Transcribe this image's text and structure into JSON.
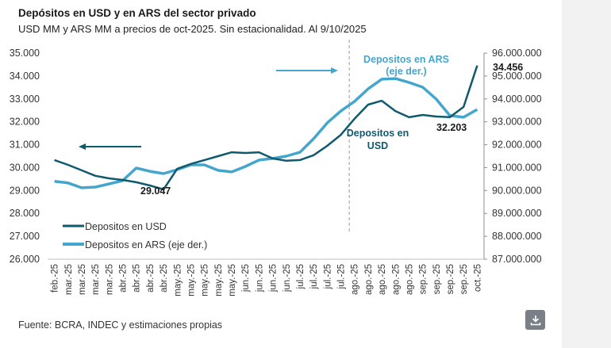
{
  "header": {
    "title": "Depósitos en USD y en ARS del sector privado",
    "subtitle": "USD MM y ARS MM a precios de oct-2025. Sin estacionalidad. Al 9/10/2025"
  },
  "footer": {
    "source": "Fuente: BCRA, INDEC y estimaciones propias",
    "download_icon": "download-icon"
  },
  "colors": {
    "usd": "#0f5a6e",
    "ars": "#45a6cd",
    "axis": "#bfbfbf",
    "text": "#333333"
  },
  "chart_data": {
    "type": "line",
    "title": "Depósitos en USD y en ARS del sector privado",
    "subtitle": "USD MM y ARS MM a precios de oct-2025. Sin estacionalidad. Al 9/10/2025",
    "categories": [
      "feb.-25",
      "mar.-25",
      "mar.-25",
      "mar.-25",
      "mar.-25",
      "abr.-25",
      "abr.-25",
      "abr.-25",
      "abr.-25",
      "may.-25",
      "may.-25",
      "may.-25",
      "may.-25",
      "may.-25",
      "jun.-25",
      "jun.-25",
      "jun.-25",
      "jun.-25",
      "jul.-25",
      "jul.-25",
      "jul.-25",
      "jul.-25",
      "ago.-25",
      "ago.-25",
      "ago.-25",
      "ago.-25",
      "ago.-25",
      "sep.-25",
      "sep.-25",
      "sep.-25",
      "sep.-25",
      "oct.-25"
    ],
    "left_axis": {
      "ylim": [
        26000,
        35000
      ],
      "ticks": [
        "35.000",
        "34.000",
        "33.000",
        "32.000",
        "31.000",
        "30.000",
        "29.000",
        "28.000",
        "27.000",
        "26.000"
      ],
      "tick_values": [
        35000,
        34000,
        33000,
        32000,
        31000,
        30000,
        29000,
        28000,
        27000,
        26000
      ]
    },
    "right_axis": {
      "ylim": [
        87000000,
        96000000
      ],
      "ticks": [
        "96.000.000",
        "95.000.000",
        "94.000.000",
        "93.000.000",
        "92.000.000",
        "91.000.000",
        "90.000.000",
        "89.000.000",
        "88.000.000",
        "87.000.000"
      ],
      "tick_values": [
        96000000,
        95000000,
        94000000,
        93000000,
        92000000,
        91000000,
        90000000,
        89000000,
        88000000,
        87000000
      ]
    },
    "series": [
      {
        "name": "Depositos en USD",
        "axis": "left",
        "values": [
          30330,
          30120,
          29880,
          29640,
          29530,
          29460,
          29360,
          29220,
          29047,
          29950,
          30160,
          30330,
          30500,
          30670,
          30640,
          30670,
          30400,
          30300,
          30330,
          30540,
          30950,
          31430,
          32130,
          32750,
          32920,
          32470,
          32200,
          32300,
          32230,
          32203,
          32650,
          34456
        ]
      },
      {
        "name": "Depositos en ARS (eje der.)",
        "axis": "right",
        "values": [
          90400000,
          90330000,
          90120000,
          90150000,
          90290000,
          90430000,
          90980000,
          90840000,
          90740000,
          90910000,
          91120000,
          91120000,
          90880000,
          90810000,
          91050000,
          91330000,
          91400000,
          91500000,
          91670000,
          92260000,
          92950000,
          93470000,
          93890000,
          94440000,
          94860000,
          94890000,
          94720000,
          94510000,
          93990000,
          93270000,
          93200000,
          93540000
        ]
      }
    ],
    "legend": {
      "placement": "bottom-left",
      "entries": [
        "Depositos en USD",
        "Depositos en ARS (eje der.)"
      ]
    },
    "annotations": {
      "label_min_usd": "29.047",
      "label_mid_usd": "32.203",
      "label_last_usd": "34.456",
      "ars_callout_line1": "Depositos en ARS",
      "ars_callout_line2": "(eje der.)",
      "usd_callout_line1": "Depositos en",
      "usd_callout_line2": "USD",
      "arrow_left": "left-arrow",
      "arrow_right": "right-arrow",
      "divider_category_index": 22
    },
    "grid": false
  }
}
